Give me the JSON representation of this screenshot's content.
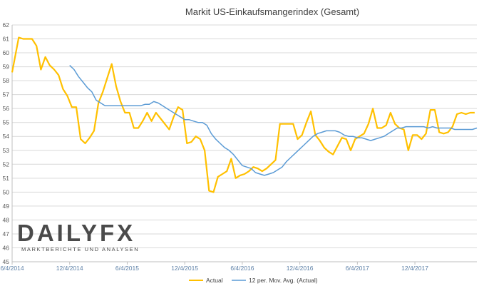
{
  "chart_data": {
    "type": "line",
    "title": "Markit US-Einkaufsmangerindex (Gesamt)",
    "xlabel": "",
    "ylabel": "",
    "ylim": [
      45,
      62
    ],
    "yticks": [
      45,
      46,
      47,
      48,
      49,
      50,
      51,
      52,
      53,
      54,
      55,
      56,
      57,
      58,
      59,
      60,
      61,
      62
    ],
    "x_tick_labels": [
      "6/4/2014",
      "12/4/2014",
      "6/4/2015",
      "12/4/2015",
      "6/4/2016",
      "12/4/2016",
      "6/4/2017",
      "12/4/2017"
    ],
    "x_tick_positions": [
      0,
      26,
      52,
      78,
      104,
      130,
      156,
      182
    ],
    "x_max": 210,
    "grid": true,
    "legend_position": "bottom",
    "series": [
      {
        "name": "Actual",
        "color": "#FFC000",
        "x": [
          0,
          3,
          5,
          7,
          9,
          11,
          13,
          15,
          17,
          19,
          21,
          23,
          25,
          27,
          29,
          31,
          33,
          35,
          37,
          39,
          41,
          43,
          45,
          47,
          49,
          51,
          53,
          55,
          57,
          59,
          61,
          63,
          65,
          67,
          69,
          71,
          73,
          75,
          77,
          79,
          81,
          83,
          85,
          87,
          89,
          91,
          93,
          95,
          97,
          99,
          101,
          103,
          105,
          107,
          109,
          111,
          113,
          115,
          117,
          119,
          121,
          123,
          125,
          127,
          129,
          131,
          133,
          135,
          137,
          139,
          141,
          143,
          145,
          147,
          149,
          151,
          153,
          155,
          157,
          159,
          161,
          163,
          165,
          167,
          169,
          171,
          173,
          175,
          177,
          179,
          181,
          183,
          185,
          187,
          189,
          191,
          193,
          195,
          197,
          199,
          201,
          203,
          205,
          207,
          209
        ],
        "values": [
          58.6,
          61.1,
          61,
          61,
          61,
          60.5,
          58.8,
          59.7,
          59.1,
          58.8,
          58.4,
          57.4,
          56.9,
          56.1,
          56.1,
          53.8,
          53.5,
          53.9,
          54.4,
          56.4,
          57.2,
          58.2,
          59.2,
          57.6,
          56.5,
          55.7,
          55.7,
          54.6,
          54.6,
          55.1,
          55.7,
          55.1,
          55.7,
          55.3,
          54.9,
          54.5,
          55.4,
          56.1,
          55.9,
          53.5,
          53.6,
          54,
          53.8,
          53,
          50.1,
          50,
          51.1,
          51.3,
          51.5,
          52.4,
          51,
          51.2,
          51.3,
          51.5,
          51.8,
          51.7,
          51.5,
          51.7,
          52,
          52.3,
          54.9,
          54.9,
          54.9,
          54.9,
          53.8,
          54.1,
          55,
          55.8,
          54.1,
          53.7,
          53.2,
          52.9,
          52.7,
          53.3,
          53.9,
          53.8,
          53,
          53.8,
          54,
          54.2,
          54.9,
          56,
          54.6,
          54.6,
          54.8,
          55.7,
          54.9,
          54.6,
          54.5,
          53,
          54.1,
          54.1,
          53.8,
          54.2,
          55.9,
          55.9,
          54.3,
          54.2,
          54.3,
          54.7,
          55.6,
          55.7,
          55.6,
          55.7,
          55.7
        ]
      },
      {
        "name": "12 per. Mov. Avg. (Actual)",
        "color": "#5B9BD5",
        "x": [
          26,
          28,
          30,
          32,
          34,
          36,
          38,
          40,
          42,
          44,
          46,
          48,
          50,
          52,
          54,
          56,
          58,
          60,
          62,
          64,
          66,
          68,
          70,
          72,
          74,
          76,
          78,
          80,
          82,
          84,
          86,
          88,
          90,
          92,
          94,
          96,
          98,
          100,
          102,
          104,
          106,
          108,
          110,
          112,
          114,
          116,
          118,
          120,
          122,
          124,
          126,
          128,
          130,
          132,
          134,
          136,
          138,
          140,
          142,
          144,
          146,
          148,
          150,
          152,
          154,
          156,
          158,
          160,
          162,
          164,
          166,
          168,
          170,
          172,
          174,
          176,
          178,
          180,
          182,
          184,
          186,
          188,
          190,
          192,
          194,
          196,
          198,
          200,
          202,
          204,
          206,
          208,
          210
        ],
        "values": [
          59.1,
          58.8,
          58.3,
          57.9,
          57.5,
          57.2,
          56.6,
          56.4,
          56.2,
          56.2,
          56.2,
          56.2,
          56.2,
          56.2,
          56.2,
          56.2,
          56.2,
          56.3,
          56.3,
          56.5,
          56.4,
          56.2,
          56,
          55.8,
          55.6,
          55.4,
          55.2,
          55.2,
          55.1,
          55,
          55,
          54.8,
          54.2,
          53.8,
          53.5,
          53.2,
          53,
          52.7,
          52.3,
          51.9,
          51.8,
          51.7,
          51.4,
          51.3,
          51.2,
          51.3,
          51.4,
          51.6,
          51.8,
          52.2,
          52.5,
          52.8,
          53.1,
          53.4,
          53.7,
          54,
          54.2,
          54.3,
          54.4,
          54.4,
          54.4,
          54.3,
          54.1,
          54,
          54,
          53.9,
          53.9,
          53.8,
          53.7,
          53.8,
          53.9,
          54,
          54.2,
          54.4,
          54.6,
          54.6,
          54.7,
          54.7,
          54.7,
          54.7,
          54.7,
          54.6,
          54.7,
          54.6,
          54.6,
          54.6,
          54.6,
          54.5,
          54.5,
          54.5,
          54.5,
          54.5,
          54.6
        ]
      }
    ]
  },
  "watermark": {
    "brand_text": "DAILYFX",
    "tagline": "MARKTBERICHTE UND ANALYSEN"
  },
  "colors": {
    "actual": "#FFC000",
    "moving_average": "#5B9BD5",
    "grid": "#D9D9D9",
    "axis": "#BFBFBF",
    "x_tick_text": "#5B7FA6"
  }
}
